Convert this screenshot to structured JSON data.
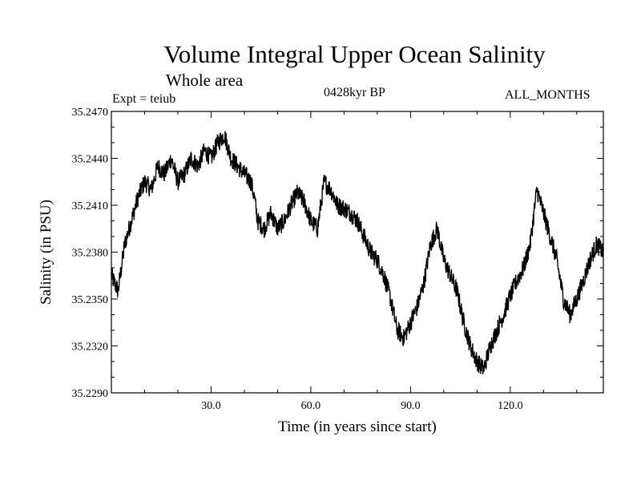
{
  "chart_data": {
    "type": "line",
    "title": "Volume Integral Upper Ocean Salinity",
    "subtitle": "Whole area",
    "experiment": "Expt = teiub",
    "period": "0428kyr BP",
    "months": "ALL_MONTHS",
    "xlabel": "Time (in years since start)",
    "ylabel": "Salinity (in PSU)",
    "xlim": [
      0,
      148
    ],
    "ylim": [
      35.229,
      35.247
    ],
    "x_ticks": [
      30.0,
      60.0,
      90.0,
      120.0
    ],
    "x_tick_labels": [
      "30.0",
      "60.0",
      "90.0",
      "120.0"
    ],
    "y_ticks": [
      35.229,
      35.232,
      35.235,
      35.238,
      35.241,
      35.244,
      35.247
    ],
    "y_tick_labels": [
      "35.2290",
      "35.2320",
      "35.2350",
      "35.2380",
      "35.2410",
      "35.2440",
      "35.2470"
    ],
    "series": [
      {
        "name": "salinity",
        "color": "#000000",
        "x": [
          0,
          2,
          4,
          6,
          8,
          10,
          12,
          14,
          16,
          18,
          20,
          22,
          24,
          26,
          28,
          30,
          32,
          34,
          36,
          38,
          40,
          42,
          43,
          44,
          46,
          48,
          50,
          52,
          54,
          56,
          58,
          60,
          62,
          64,
          66,
          68,
          70,
          72,
          74,
          76,
          78,
          80,
          82,
          84,
          86,
          88,
          90,
          92,
          94,
          96,
          98,
          100,
          102,
          104,
          106,
          108,
          110,
          112,
          114,
          116,
          118,
          120,
          122,
          124,
          126,
          128,
          130,
          132,
          134,
          136,
          138,
          140,
          142,
          144,
          146,
          148
        ],
        "values": [
          35.2365,
          35.2355,
          35.2385,
          35.24,
          35.2415,
          35.2425,
          35.242,
          35.2435,
          35.243,
          35.244,
          35.2425,
          35.243,
          35.244,
          35.2435,
          35.2445,
          35.244,
          35.245,
          35.2455,
          35.244,
          35.2435,
          35.243,
          35.2425,
          35.2415,
          35.24,
          35.2395,
          35.2405,
          35.2395,
          35.24,
          35.241,
          35.2418,
          35.2412,
          35.24,
          35.2395,
          35.2425,
          35.242,
          35.241,
          35.2408,
          35.2405,
          35.24,
          35.239,
          35.238,
          35.2375,
          35.2365,
          35.235,
          35.233,
          35.2325,
          35.2335,
          35.2345,
          35.236,
          35.2385,
          35.2395,
          35.2375,
          35.2365,
          35.2355,
          35.2335,
          35.232,
          35.231,
          35.2305,
          35.232,
          35.233,
          35.234,
          35.2352,
          35.2362,
          35.237,
          35.2385,
          35.242,
          35.2405,
          35.239,
          35.2375,
          35.235,
          35.234,
          35.235,
          35.2362,
          35.2375,
          35.2385,
          35.238
        ]
      }
    ]
  }
}
